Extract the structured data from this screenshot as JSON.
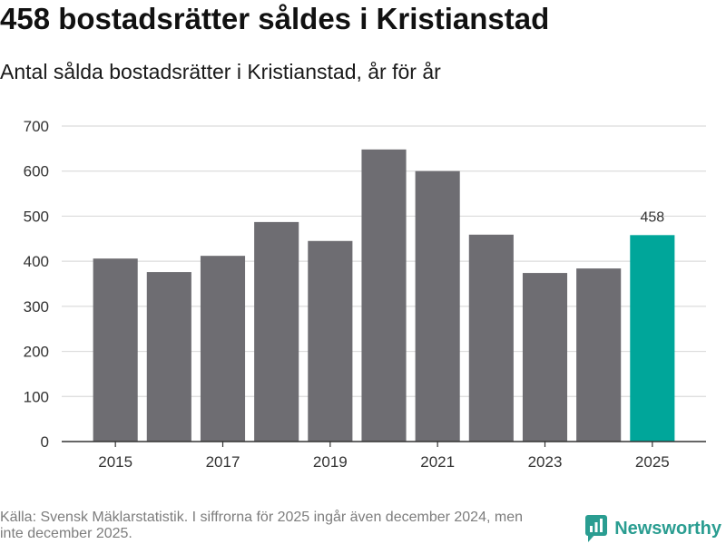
{
  "chart_data": {
    "type": "bar",
    "title": "458 bostadsrätter såldes i Kristianstad",
    "subtitle": "Antal sålda bostadsrätter i Kristianstad, år för år",
    "xlabel": "",
    "ylabel": "",
    "categories": [
      "2015",
      "2016",
      "2017",
      "2018",
      "2019",
      "2020",
      "2021",
      "2022",
      "2023",
      "2024",
      "2025"
    ],
    "values": [
      406,
      376,
      412,
      487,
      445,
      648,
      600,
      459,
      374,
      384,
      458
    ],
    "xticks": [
      "2015",
      "2017",
      "2019",
      "2021",
      "2023",
      "2025"
    ],
    "yticks": [
      0,
      100,
      200,
      300,
      400,
      500,
      600,
      700
    ],
    "ylim": [
      0,
      700
    ],
    "grid": true,
    "highlight_category": "2025",
    "data_labels": [
      {
        "category": "2025",
        "text": "458"
      }
    ],
    "colors": {
      "bar": "#6e6d72",
      "highlight": "#00a69a",
      "grid": "#dcdcdc",
      "axis": "#333333",
      "tick_text": "#333333"
    }
  },
  "footer": {
    "source": "Källa: Svensk Mäklarstatistik. I siffrorna för 2025 ingår även december 2024, men inte december 2025."
  },
  "brand": {
    "name": "Newsworthy",
    "icon": "newsworthy-logo-icon",
    "color": "#2a9d91"
  }
}
